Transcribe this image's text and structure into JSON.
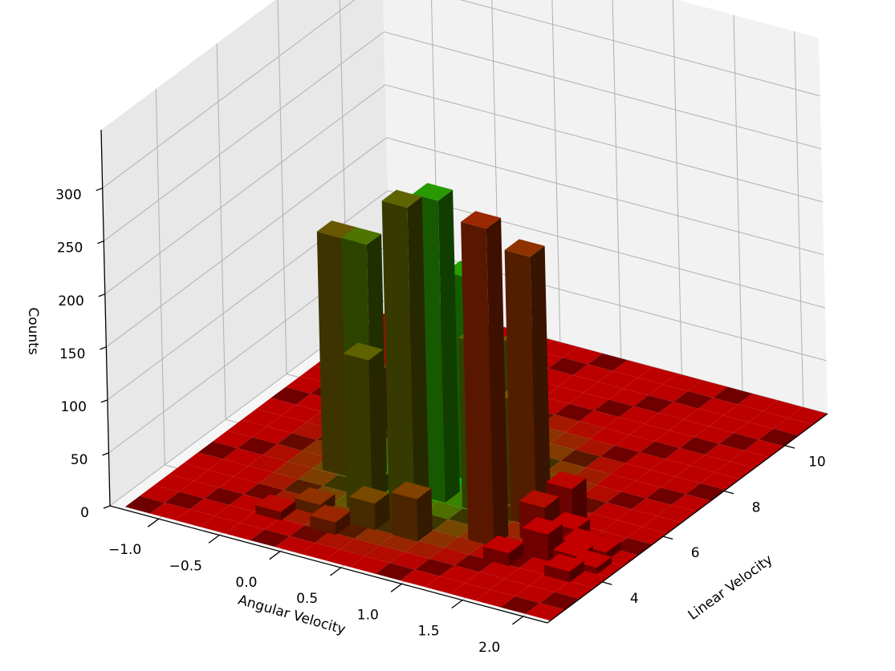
{
  "chart_data": {
    "type": "bar3d",
    "title": "",
    "xlabel": "Angular Velocity",
    "ylabel": "Linear Velocity",
    "zlabel": "Counts",
    "x_ticks": [
      "−1.0",
      "−0.5",
      "0.0",
      "0.5",
      "1.0",
      "1.5",
      "2.0"
    ],
    "y_ticks": [
      "4",
      "6",
      "8",
      "10"
    ],
    "z_ticks": [
      "0",
      "50",
      "100",
      "150",
      "200",
      "250",
      "300"
    ],
    "xlim": [
      -1.4,
      2.2
    ],
    "ylim": [
      2.2,
      11.4
    ],
    "zlim": [
      0,
      355
    ],
    "grid": true,
    "bin_width": {
      "x": 0.21,
      "y": 0.48
    },
    "bars": [
      {
        "x": -0.45,
        "y": 6.95,
        "z": 58
      },
      {
        "x": -0.45,
        "y": 8.45,
        "z": 15
      },
      {
        "x": -0.3,
        "y": 5.45,
        "z": 225
      },
      {
        "x": -0.1,
        "y": 5.45,
        "z": 225
      },
      {
        "x": 0.15,
        "y": 4.45,
        "z": 145
      },
      {
        "x": 0.5,
        "y": 4.45,
        "z": 300
      },
      {
        "x": 0.5,
        "y": 5.45,
        "z": 285
      },
      {
        "x": 0.5,
        "y": 6.45,
        "z": 190
      },
      {
        "x": 0.65,
        "y": 3.95,
        "z": 40
      },
      {
        "x": 0.3,
        "y": 3.95,
        "z": 25
      },
      {
        "x": 0.85,
        "y": 5.45,
        "z": 160
      },
      {
        "x": 0.95,
        "y": 6.45,
        "z": 140
      },
      {
        "x": 1.05,
        "y": 5.95,
        "z": 100
      },
      {
        "x": 1.15,
        "y": 4.45,
        "z": 300
      },
      {
        "x": 1.25,
        "y": 5.45,
        "z": 255
      },
      {
        "x": 1.45,
        "y": 4.95,
        "z": 35
      },
      {
        "x": 1.55,
        "y": 5.45,
        "z": 45
      },
      {
        "x": 1.6,
        "y": 4.45,
        "z": 25
      },
      {
        "x": 1.7,
        "y": 4.95,
        "z": 22
      },
      {
        "x": 1.85,
        "y": 4.45,
        "z": 12
      },
      {
        "x": 1.9,
        "y": 3.95,
        "z": 10
      },
      {
        "x": 1.8,
        "y": 4.95,
        "z": 10
      },
      {
        "x": 1.95,
        "y": 4.95,
        "z": 8
      },
      {
        "x": 2.0,
        "y": 4.45,
        "z": 6
      },
      {
        "x": 1.4,
        "y": 3.95,
        "z": 12
      },
      {
        "x": 0.1,
        "y": 3.45,
        "z": 12
      },
      {
        "x": -0.15,
        "y": 3.95,
        "z": 10
      },
      {
        "x": -0.35,
        "y": 3.45,
        "z": 8
      },
      {
        "x": 0.05,
        "y": 4.95,
        "z": 15
      },
      {
        "x": 0.25,
        "y": 5.95,
        "z": 8
      },
      {
        "x": 0.75,
        "y": 6.95,
        "z": 10
      }
    ],
    "floor": {
      "x_bins": 17,
      "y_bins": 19,
      "x_range": [
        -1.3,
        2.2
      ],
      "y_range": [
        2.3,
        11.4
      ]
    },
    "colors": {
      "green": "#00cc00",
      "red": "#cc0000",
      "pane": "#f2f2f2",
      "pane_side": "#e8e8e8",
      "grid": "#b0b0b0"
    }
  }
}
